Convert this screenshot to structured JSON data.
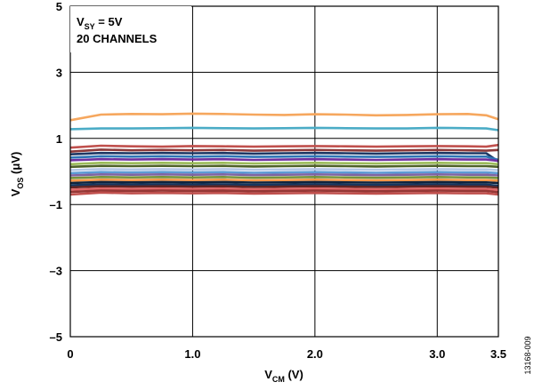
{
  "chart_data": {
    "type": "line",
    "xlabel": {
      "main": "V",
      "sub": "CM",
      "unit": " (V)"
    },
    "ylabel": {
      "main": "V",
      "sub": "OS",
      "unit": " (μV)"
    },
    "xlim": [
      0,
      3.5
    ],
    "ylim": [
      -5,
      5
    ],
    "x_ticks": [
      {
        "value": 0,
        "label": "0"
      },
      {
        "value": 1.0,
        "label": "1.0"
      },
      {
        "value": 2.0,
        "label": "2.0"
      },
      {
        "value": 3.0,
        "label": "3.0"
      },
      {
        "value": 3.5,
        "label": "3.5"
      }
    ],
    "y_ticks": [
      {
        "value": 5,
        "label": "5"
      },
      {
        "value": 3,
        "label": "3"
      },
      {
        "value": 1,
        "label": "1"
      },
      {
        "value": -1,
        "label": "–1"
      },
      {
        "value": -3,
        "label": "–3"
      },
      {
        "value": -5,
        "label": "–5"
      }
    ],
    "grid": true,
    "annotation": {
      "line1": {
        "main": "V",
        "sub": "SY",
        "rest": " = 5V"
      },
      "line2": "20 CHANNELS"
    },
    "figure_id": "13168-009",
    "x": [
      0,
      0.25,
      0.5,
      0.75,
      1.0,
      1.25,
      1.5,
      1.75,
      2.0,
      2.25,
      2.5,
      2.75,
      3.0,
      3.25,
      3.4,
      3.5
    ],
    "series": [
      {
        "color": "#f6a75e",
        "values": [
          1.55,
          1.72,
          1.74,
          1.73,
          1.75,
          1.74,
          1.72,
          1.71,
          1.73,
          1.72,
          1.7,
          1.71,
          1.73,
          1.74,
          1.7,
          1.58
        ]
      },
      {
        "color": "#4bacc6",
        "values": [
          1.28,
          1.3,
          1.3,
          1.31,
          1.32,
          1.31,
          1.3,
          1.31,
          1.32,
          1.31,
          1.3,
          1.3,
          1.32,
          1.31,
          1.3,
          1.25
        ]
      },
      {
        "color": "#c0504d",
        "values": [
          0.72,
          0.78,
          0.76,
          0.75,
          0.77,
          0.76,
          0.75,
          0.76,
          0.77,
          0.76,
          0.75,
          0.76,
          0.77,
          0.76,
          0.75,
          0.8
        ]
      },
      {
        "color": "#8b3a3a",
        "values": [
          0.6,
          0.66,
          0.64,
          0.65,
          0.64,
          0.65,
          0.63,
          0.64,
          0.65,
          0.64,
          0.63,
          0.64,
          0.65,
          0.64,
          0.63,
          0.65
        ]
      },
      {
        "color": "#1f3864",
        "values": [
          0.52,
          0.56,
          0.55,
          0.56,
          0.55,
          0.56,
          0.54,
          0.55,
          0.56,
          0.55,
          0.54,
          0.55,
          0.56,
          0.55,
          0.55,
          0.3
        ]
      },
      {
        "color": "#2e75b6",
        "values": [
          0.42,
          0.46,
          0.45,
          0.46,
          0.45,
          0.46,
          0.44,
          0.45,
          0.46,
          0.45,
          0.44,
          0.45,
          0.46,
          0.45,
          0.45,
          0.35
        ]
      },
      {
        "color": "#7030a0",
        "values": [
          0.34,
          0.37,
          0.36,
          0.37,
          0.36,
          0.37,
          0.35,
          0.36,
          0.37,
          0.36,
          0.35,
          0.36,
          0.37,
          0.36,
          0.36,
          0.32
        ]
      },
      {
        "color": "#9bbb59",
        "values": [
          0.22,
          0.26,
          0.25,
          0.26,
          0.25,
          0.26,
          0.24,
          0.25,
          0.26,
          0.25,
          0.24,
          0.25,
          0.26,
          0.25,
          0.25,
          0.22
        ]
      },
      {
        "color": "#4f6228",
        "values": [
          0.14,
          0.17,
          0.16,
          0.17,
          0.16,
          0.17,
          0.15,
          0.16,
          0.17,
          0.16,
          0.15,
          0.16,
          0.17,
          0.16,
          0.16,
          0.14
        ]
      },
      {
        "color": "#b4c7e7",
        "values": [
          0.04,
          0.07,
          0.06,
          0.07,
          0.06,
          0.07,
          0.05,
          0.06,
          0.07,
          0.06,
          0.05,
          0.06,
          0.07,
          0.06,
          0.06,
          0.04
        ]
      },
      {
        "color": "#5b9bd5",
        "values": [
          -0.05,
          -0.02,
          -0.03,
          -0.02,
          -0.03,
          -0.02,
          -0.04,
          -0.03,
          -0.02,
          -0.03,
          -0.04,
          -0.03,
          -0.02,
          -0.03,
          -0.03,
          -0.05
        ]
      },
      {
        "color": "#8064a2",
        "values": [
          -0.12,
          -0.09,
          -0.1,
          -0.09,
          -0.1,
          -0.09,
          -0.11,
          -0.1,
          -0.09,
          -0.1,
          -0.11,
          -0.1,
          -0.09,
          -0.1,
          -0.1,
          -0.12
        ]
      },
      {
        "color": "#76923c",
        "values": [
          -0.2,
          -0.17,
          -0.18,
          -0.17,
          -0.18,
          -0.17,
          -0.19,
          -0.18,
          -0.17,
          -0.18,
          -0.19,
          -0.18,
          -0.17,
          -0.18,
          -0.18,
          -0.2
        ]
      },
      {
        "color": "#f79646",
        "values": [
          -0.28,
          -0.25,
          -0.26,
          -0.25,
          -0.26,
          -0.25,
          -0.27,
          -0.26,
          -0.25,
          -0.26,
          -0.27,
          -0.26,
          -0.25,
          -0.26,
          -0.26,
          -0.28
        ]
      },
      {
        "color": "#0f243e",
        "values": [
          -0.35,
          -0.32,
          -0.33,
          -0.32,
          -0.33,
          -0.32,
          -0.34,
          -0.33,
          -0.32,
          -0.33,
          -0.34,
          -0.33,
          -0.32,
          -0.33,
          -0.33,
          -0.35
        ]
      },
      {
        "color": "#17375e",
        "values": [
          -0.42,
          -0.39,
          -0.4,
          -0.39,
          -0.4,
          -0.39,
          -0.41,
          -0.4,
          -0.39,
          -0.4,
          -0.41,
          -0.4,
          -0.39,
          -0.4,
          -0.4,
          -0.43
        ]
      },
      {
        "color": "#632523",
        "values": [
          -0.48,
          -0.45,
          -0.46,
          -0.45,
          -0.46,
          -0.45,
          -0.47,
          -0.46,
          -0.45,
          -0.46,
          -0.47,
          -0.46,
          -0.45,
          -0.46,
          -0.46,
          -0.49
        ]
      },
      {
        "color": "#e06666",
        "values": [
          -0.55,
          -0.52,
          -0.53,
          -0.52,
          -0.53,
          -0.52,
          -0.54,
          -0.53,
          -0.52,
          -0.53,
          -0.54,
          -0.53,
          -0.52,
          -0.53,
          -0.53,
          -0.56
        ]
      },
      {
        "color": "#953735",
        "values": [
          -0.62,
          -0.58,
          -0.59,
          -0.58,
          -0.59,
          -0.58,
          -0.6,
          -0.59,
          -0.58,
          -0.59,
          -0.6,
          -0.59,
          -0.58,
          -0.59,
          -0.59,
          -0.63
        ]
      },
      {
        "color": "#c0504d",
        "values": [
          -0.7,
          -0.64,
          -0.66,
          -0.65,
          -0.66,
          -0.65,
          -0.67,
          -0.66,
          -0.65,
          -0.66,
          -0.67,
          -0.66,
          -0.65,
          -0.66,
          -0.66,
          -0.7
        ]
      }
    ]
  }
}
